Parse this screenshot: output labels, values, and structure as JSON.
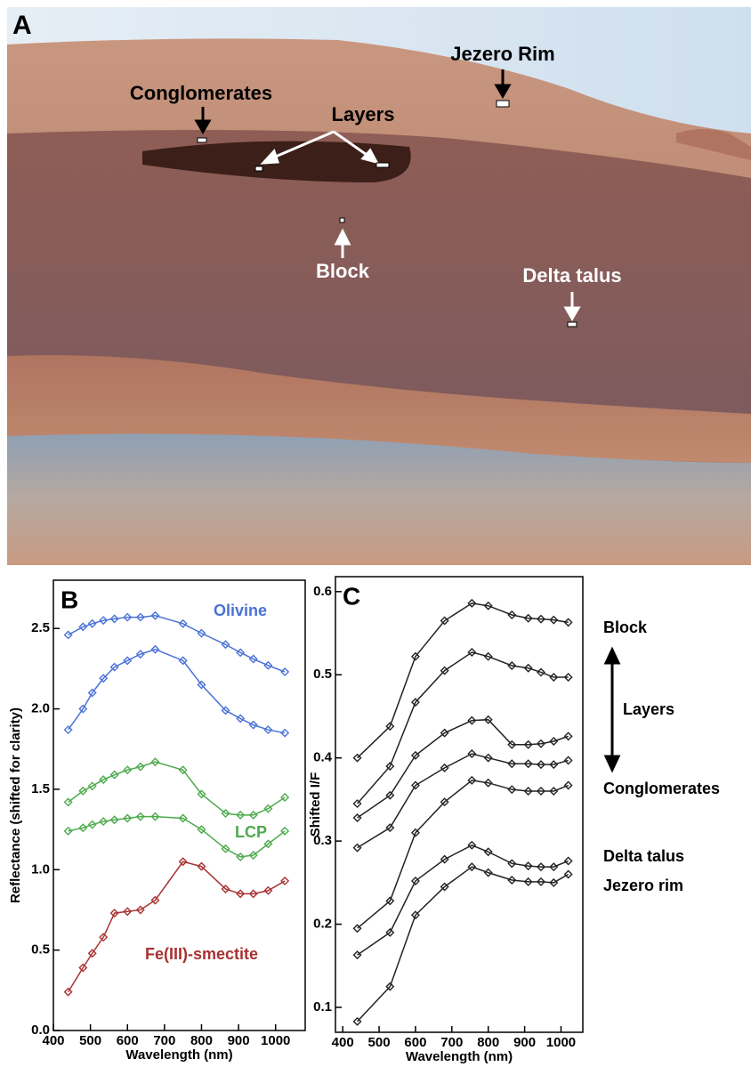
{
  "panel_a": {
    "label": "A",
    "annotations": [
      "Jezero Rim",
      "Conglomerates",
      "Layers",
      "Block",
      "Delta talus"
    ]
  },
  "chart_data": [
    {
      "type": "line",
      "panel_label": "B",
      "x_label": "Wavelength (nm)",
      "y_label": "Reflectance (shifted for clarity)",
      "xlim": [
        400,
        1080
      ],
      "ylim": [
        0,
        2.8
      ],
      "xticks": [
        400,
        500,
        600,
        700,
        800,
        900,
        1000
      ],
      "yticks": [
        {
          "value": 0,
          "label": "0.0"
        },
        0.5,
        {
          "value": 1,
          "label": "1.0"
        },
        1.5,
        {
          "value": 2,
          "label": "2.0"
        },
        2.5
      ],
      "x": [
        440,
        480,
        505,
        535,
        565,
        600,
        635,
        675,
        750,
        800,
        865,
        905,
        940,
        980,
        1025
      ],
      "series": [
        {
          "name": "Olivine",
          "color": "#4a72d6",
          "values": [
            2.46,
            2.51,
            2.53,
            2.55,
            2.56,
            2.57,
            2.57,
            2.58,
            2.53,
            2.47,
            2.4,
            2.35,
            2.31,
            2.27,
            2.23
          ]
        },
        {
          "color": "#4a72d6",
          "values": [
            1.87,
            2.0,
            2.1,
            2.19,
            2.26,
            2.3,
            2.34,
            2.37,
            2.3,
            2.15,
            1.99,
            1.94,
            1.9,
            1.87,
            1.85
          ]
        },
        {
          "name": "LCP",
          "color": "#4daa4d",
          "values": [
            1.42,
            1.49,
            1.52,
            1.56,
            1.59,
            1.62,
            1.64,
            1.67,
            1.62,
            1.47,
            1.35,
            1.34,
            1.34,
            1.38,
            1.45
          ]
        },
        {
          "color": "#4daa4d",
          "values": [
            1.24,
            1.26,
            1.28,
            1.3,
            1.31,
            1.32,
            1.33,
            1.33,
            1.32,
            1.25,
            1.13,
            1.08,
            1.09,
            1.16,
            1.24
          ]
        },
        {
          "name": "Fe(III)-smectite",
          "color": "#a83232",
          "values": [
            0.24,
            0.39,
            0.48,
            0.58,
            0.73,
            0.74,
            0.75,
            0.81,
            1.05,
            1.02,
            0.88,
            0.85,
            0.85,
            0.87,
            0.93
          ]
        }
      ]
    },
    {
      "type": "line",
      "panel_label": "C",
      "x_label": "Wavelength (nm)",
      "y_label": "Shifted I/F",
      "xlim": [
        380,
        1060
      ],
      "ylim": [
        0.07,
        0.618
      ],
      "xticks": [
        400,
        500,
        600,
        700,
        800,
        900,
        1000
      ],
      "yticks": [
        0.1,
        0.2,
        0.3,
        0.4,
        0.5,
        0.6
      ],
      "x": [
        440,
        530,
        600,
        680,
        755,
        800,
        865,
        910,
        945,
        980,
        1020
      ],
      "annotations": [
        "Block",
        "Layers",
        "Conglomerates",
        "Delta talus",
        "Jezero rim"
      ],
      "series": [
        {
          "color": "#222222",
          "values": [
            0.4,
            0.438,
            0.522,
            0.565,
            0.586,
            0.583,
            0.572,
            0.568,
            0.567,
            0.566,
            0.563
          ]
        },
        {
          "color": "#222222",
          "values": [
            0.345,
            0.39,
            0.467,
            0.505,
            0.527,
            0.522,
            0.511,
            0.508,
            0.503,
            0.497,
            0.497
          ]
        },
        {
          "color": "#222222",
          "values": [
            0.328,
            0.355,
            0.403,
            0.43,
            0.445,
            0.446,
            0.416,
            0.416,
            0.417,
            0.42,
            0.426
          ]
        },
        {
          "color": "#222222",
          "values": [
            0.292,
            0.316,
            0.367,
            0.388,
            0.405,
            0.4,
            0.393,
            0.393,
            0.392,
            0.392,
            0.397
          ]
        },
        {
          "color": "#222222",
          "values": [
            0.195,
            0.228,
            0.31,
            0.347,
            0.373,
            0.37,
            0.362,
            0.36,
            0.36,
            0.36,
            0.367
          ]
        },
        {
          "color": "#222222",
          "values": [
            0.163,
            0.19,
            0.252,
            0.278,
            0.295,
            0.287,
            0.273,
            0.27,
            0.269,
            0.269,
            0.276
          ]
        },
        {
          "color": "#222222",
          "values": [
            0.083,
            0.125,
            0.211,
            0.245,
            0.269,
            0.262,
            0.253,
            0.251,
            0.251,
            0.25,
            0.26
          ]
        }
      ]
    }
  ]
}
